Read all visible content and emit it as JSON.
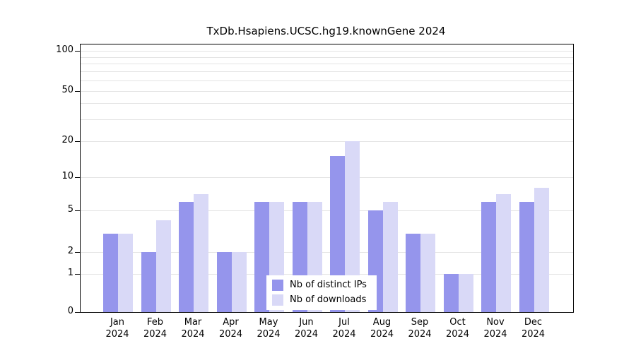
{
  "title": "TxDb.Hsapiens.UCSC.hg19.knownGene 2024",
  "chart_data": {
    "type": "bar",
    "title": "TxDb.Hsapiens.UCSC.hg19.knownGene 2024",
    "categories": [
      "Jan",
      "Feb",
      "Mar",
      "Apr",
      "May",
      "Jun",
      "Jul",
      "Aug",
      "Sep",
      "Oct",
      "Nov",
      "Dec"
    ],
    "year": "2024",
    "series": [
      {
        "name": "Nb of distinct IPs",
        "color": "#9595ec",
        "values": [
          3,
          2,
          6,
          2,
          6,
          6,
          15,
          5,
          3,
          1,
          6,
          6
        ]
      },
      {
        "name": "Nb of downloads",
        "color": "#d9d9f7",
        "values": [
          3,
          4,
          7,
          2,
          6,
          6,
          20,
          6,
          3,
          1,
          7,
          8
        ]
      }
    ],
    "xlabel": "",
    "ylabel": "",
    "y_ticks": [
      100,
      50,
      20,
      10,
      5,
      2,
      1,
      0
    ],
    "gridline_values": [
      1,
      2,
      5,
      10,
      20,
      30,
      40,
      50,
      60,
      70,
      80,
      90,
      100
    ],
    "scale": "log",
    "ylim": [
      0,
      100
    ],
    "grid": true,
    "legend_position": "bottom-center",
    "background_color": "#ffffff",
    "gridline_color": "#e4e4e4"
  }
}
